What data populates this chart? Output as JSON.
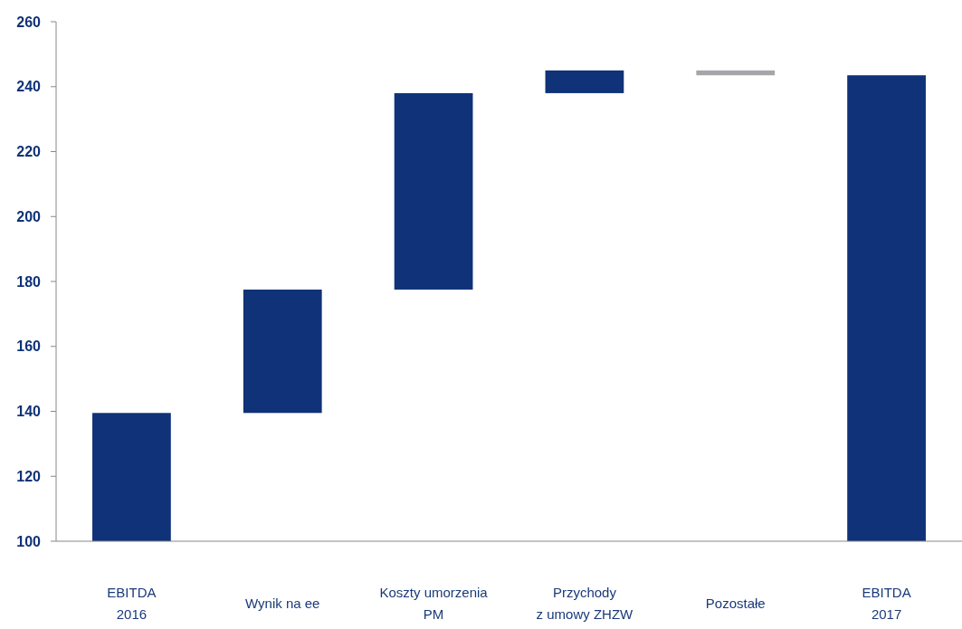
{
  "chart_data": {
    "type": "bar",
    "categories": [
      "EBITDA\n2016",
      "Wynik na ee",
      "Koszty umorzenia\nPM",
      "Przychody\nz umowy ZHZW",
      "Pozostałe",
      "EBITDA\n2017"
    ],
    "values": [
      139.5,
      38,
      60.5,
      7,
      -1.5,
      243.5
    ],
    "base": [
      null,
      139.5,
      177.5,
      238,
      245,
      null
    ],
    "colors": [
      "#0f3278",
      "#0f3278",
      "#0f3278",
      "#0f3278",
      "#a6a5aa",
      "#0f3278"
    ],
    "ylim": [
      100,
      260
    ],
    "yticks": [
      100,
      120,
      140,
      160,
      180,
      200,
      220,
      240,
      260
    ]
  }
}
